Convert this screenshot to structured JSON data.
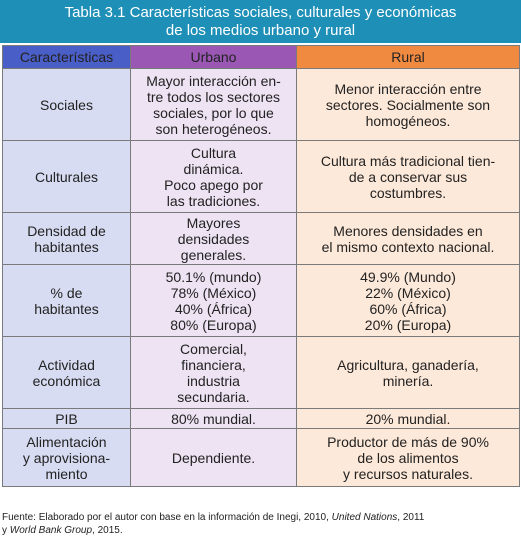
{
  "title": {
    "line1": "Tabla 3.1 Características sociales, culturales y económicas",
    "line2": "de los medios urbano y rural"
  },
  "headers": [
    "Características",
    "Urbano",
    "Rural"
  ],
  "rows": [
    {
      "characteristic": [
        "Sociales"
      ],
      "urbano": [
        "Mayor interacción en-",
        "tre todos los sectores",
        "sociales, por lo que",
        "son heterogéneos."
      ],
      "rural": [
        "Menor interacción entre",
        "sectores. Socialmente son",
        "homogéneos."
      ]
    },
    {
      "characteristic": [
        "Culturales"
      ],
      "urbano": [
        "Cultura",
        "dinámica.",
        "Poco apego por",
        "las tradiciones."
      ],
      "rural": [
        "Cultura más tradicional tien-",
        "de a conservar sus",
        "costumbres."
      ]
    },
    {
      "characteristic": [
        "Densidad de",
        "habitantes"
      ],
      "urbano": [
        "Mayores",
        "densidades",
        "generales."
      ],
      "rural": [
        "Menores densidades en",
        "el mismo contexto nacional."
      ]
    },
    {
      "characteristic": [
        "% de",
        "habitantes"
      ],
      "urbano": [
        "50.1% (mundo)",
        "78% (México)",
        "40% (África)",
        "80% (Europa)"
      ],
      "rural": [
        "49.9% (Mundo)",
        "22% (México)",
        "60% (África)",
        "20% (Europa)"
      ]
    },
    {
      "characteristic": [
        "Actividad",
        "económica"
      ],
      "urbano": [
        "Comercial,",
        "financiera,",
        "industria",
        "secundaria."
      ],
      "rural": [
        "Agricultura, ganadería,",
        "minería."
      ]
    },
    {
      "characteristic": [
        "PIB"
      ],
      "urbano": [
        "80% mundial."
      ],
      "rural": [
        "20% mundial."
      ]
    },
    {
      "characteristic": [
        "Alimentación",
        "y aprovisiona-",
        "miento"
      ],
      "urbano": [
        "Dependiente."
      ],
      "rural": [
        "Productor de más de 90%",
        "de los alimentos",
        "y recursos naturales."
      ]
    }
  ],
  "source": {
    "prefix": "Fuente: Elaborado por el autor con base en la información de Inegi, 2010, ",
    "italic1": "United Nations",
    "mid": ", 2011",
    "line2_prefix": "y ",
    "italic2": "World Bank Group",
    "suffix": ", 2015."
  }
}
